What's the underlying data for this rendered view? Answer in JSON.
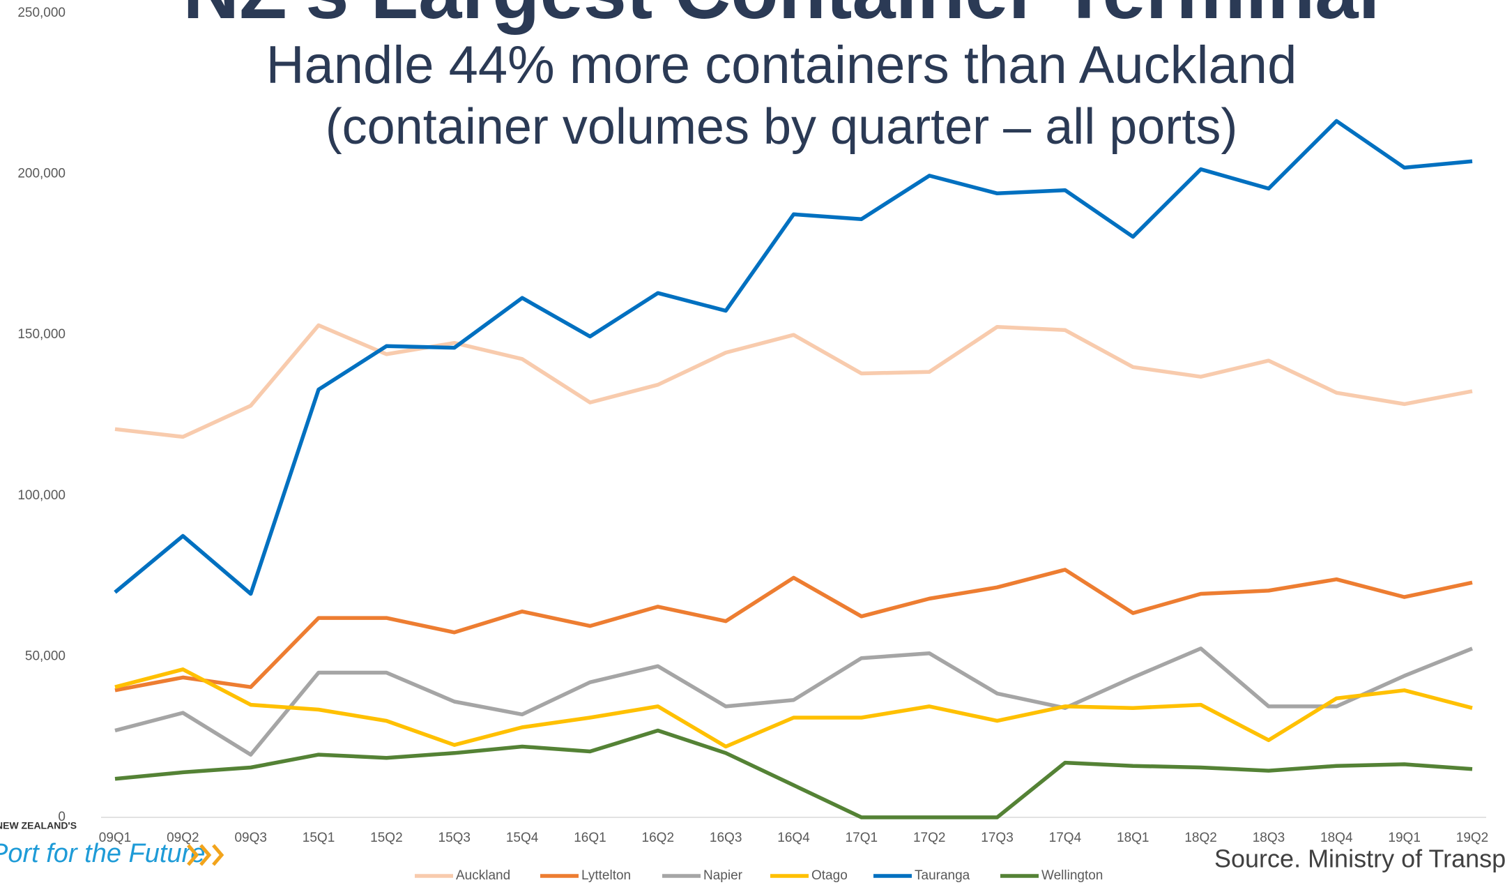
{
  "chart_data": {
    "type": "line",
    "title": "NZ's Largest Container Terminal",
    "subtitle": "Handle 44% more containers than Auckland",
    "subtitle2": "(container volumes by quarter – all ports)",
    "source": "Source.  Ministry of Transport",
    "logo_top": "NEW ZEALAND'S",
    "logo_main": "Port for the Future",
    "categories": [
      "09Q1",
      "09Q2",
      "09Q3",
      "15Q1",
      "15Q2",
      "15Q3",
      "15Q4",
      "16Q1",
      "16Q2",
      "16Q3",
      "16Q4",
      "17Q1",
      "17Q2",
      "17Q3",
      "17Q4",
      "18Q1",
      "18Q2",
      "18Q3",
      "18Q4",
      "19Q1",
      "19Q2"
    ],
    "series": [
      {
        "name": "Auckland",
        "color": "#f8cbad",
        "values": [
          120700,
          118300,
          128000,
          153000,
          144000,
          147500,
          142500,
          129000,
          134500,
          144500,
          150000,
          138000,
          138500,
          152500,
          151500,
          140000,
          137000,
          142000,
          132000,
          128500,
          132500
        ]
      },
      {
        "name": "Lyttelton",
        "color": "#ed7d31",
        "values": [
          39500,
          43500,
          40500,
          62000,
          62000,
          57500,
          64000,
          59500,
          65500,
          61000,
          74500,
          62500,
          68000,
          71500,
          77000,
          63500,
          69500,
          70500,
          74000,
          68500,
          73000
        ]
      },
      {
        "name": "Napier",
        "color": "#a5a5a5",
        "values": [
          27000,
          32500,
          19500,
          45000,
          45000,
          36000,
          32000,
          42000,
          47000,
          34500,
          36500,
          49500,
          51000,
          38500,
          34000,
          43500,
          52500,
          34500,
          34500,
          44000,
          52500
        ]
      },
      {
        "name": "Otago",
        "color": "#ffc000",
        "values": [
          40500,
          46000,
          35000,
          33500,
          30000,
          22500,
          28000,
          31000,
          34500,
          22000,
          31000,
          31000,
          34500,
          30000,
          34500,
          34000,
          35000,
          24000,
          37000,
          39500,
          34000
        ]
      },
      {
        "name": "Tauranga",
        "color": "#0070c0",
        "values": [
          70000,
          87500,
          69500,
          133000,
          146500,
          146000,
          161500,
          149500,
          163000,
          157500,
          187500,
          186000,
          199500,
          194000,
          195000,
          180500,
          201500,
          195500,
          216500,
          202000,
          204000
        ]
      },
      {
        "name": "Wellington",
        "color": "#548235",
        "values": [
          12000,
          14000,
          15500,
          19500,
          18500,
          20000,
          22000,
          20500,
          27000,
          20000,
          10000,
          0,
          0,
          0,
          17000,
          16000,
          15500,
          14500,
          16000,
          16500,
          15000
        ]
      }
    ],
    "ylim": [
      0,
      250000
    ],
    "yticks": [
      0,
      {
        "value": 50000,
        "label": "50,000"
      },
      {
        "value": 100000,
        "label": "100,000"
      },
      {
        "value": 150000,
        "label": "150,000"
      },
      {
        "value": 200000,
        "label": "200,000"
      },
      {
        "value": 250000,
        "label": "250,000"
      }
    ],
    "grid": false,
    "legend": "bottom"
  }
}
